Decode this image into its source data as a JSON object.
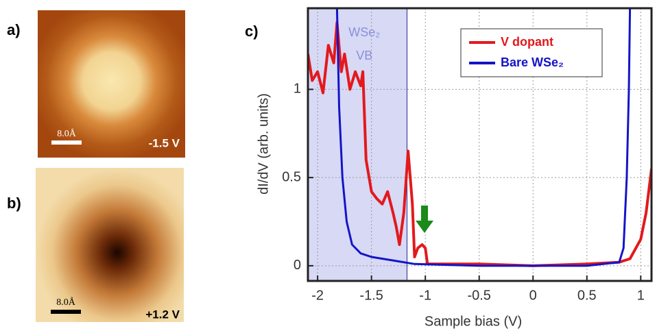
{
  "panels": [
    {
      "label": "a)",
      "scale_bar": "8.0Å",
      "bias": "-1.5 V"
    },
    {
      "label": "b)",
      "scale_bar": "8.0Å",
      "bias": "+1.2 V"
    }
  ],
  "chart_data": {
    "type": "line",
    "panel_label": "c)",
    "x_label": "Sample bias (V)",
    "y_label": "dI/dV (arb. units)",
    "xlim": [
      -2.09,
      1.1
    ],
    "ylim": [
      -0.086,
      1.46
    ],
    "xticks": [
      -2,
      -1.5,
      -1,
      -0.5,
      0,
      0.5,
      1
    ],
    "yticks": [
      0,
      0.5,
      1
    ],
    "grid": true,
    "legend": "upper right",
    "vb_region": {
      "label": [
        "WSe₂",
        "VB"
      ],
      "x": [
        -2.09,
        -1.17
      ],
      "color": "#c9ccf2"
    },
    "series": [
      {
        "name": "V dopant",
        "color": "#e3191c",
        "x": [
          -2.09,
          -2.05,
          -2.0,
          -1.95,
          -1.9,
          -1.85,
          -1.82,
          -1.78,
          -1.75,
          -1.7,
          -1.65,
          -1.6,
          -1.58,
          -1.55,
          -1.5,
          -1.45,
          -1.4,
          -1.35,
          -1.3,
          -1.27,
          -1.24,
          -1.2,
          -1.16,
          -1.12,
          -1.1,
          -1.07,
          -1.03,
          -1.0,
          -0.98,
          -0.5,
          0,
          0.5,
          0.8,
          0.9,
          1.0,
          1.05,
          1.1
        ],
        "values": [
          1.2,
          1.05,
          1.1,
          0.98,
          1.25,
          1.15,
          1.38,
          1.1,
          1.2,
          1.0,
          1.1,
          1.02,
          1.1,
          0.6,
          0.42,
          0.38,
          0.35,
          0.42,
          0.3,
          0.22,
          0.12,
          0.3,
          0.65,
          0.35,
          0.05,
          0.1,
          0.12,
          0.1,
          0.01,
          0.01,
          0.0,
          0.01,
          0.02,
          0.04,
          0.15,
          0.3,
          0.55
        ]
      },
      {
        "name": "Bare WSe₂",
        "color": "#1414c8",
        "x": [
          -1.82,
          -1.8,
          -1.77,
          -1.73,
          -1.68,
          -1.6,
          -1.5,
          -1.3,
          -1.1,
          -0.5,
          0.5,
          0.8,
          0.84,
          0.87,
          0.89,
          0.9
        ],
        "values": [
          1.46,
          0.9,
          0.5,
          0.25,
          0.12,
          0.07,
          0.05,
          0.03,
          0.01,
          0.0,
          0.0,
          0.02,
          0.1,
          0.5,
          1.0,
          1.46
        ]
      }
    ]
  }
}
